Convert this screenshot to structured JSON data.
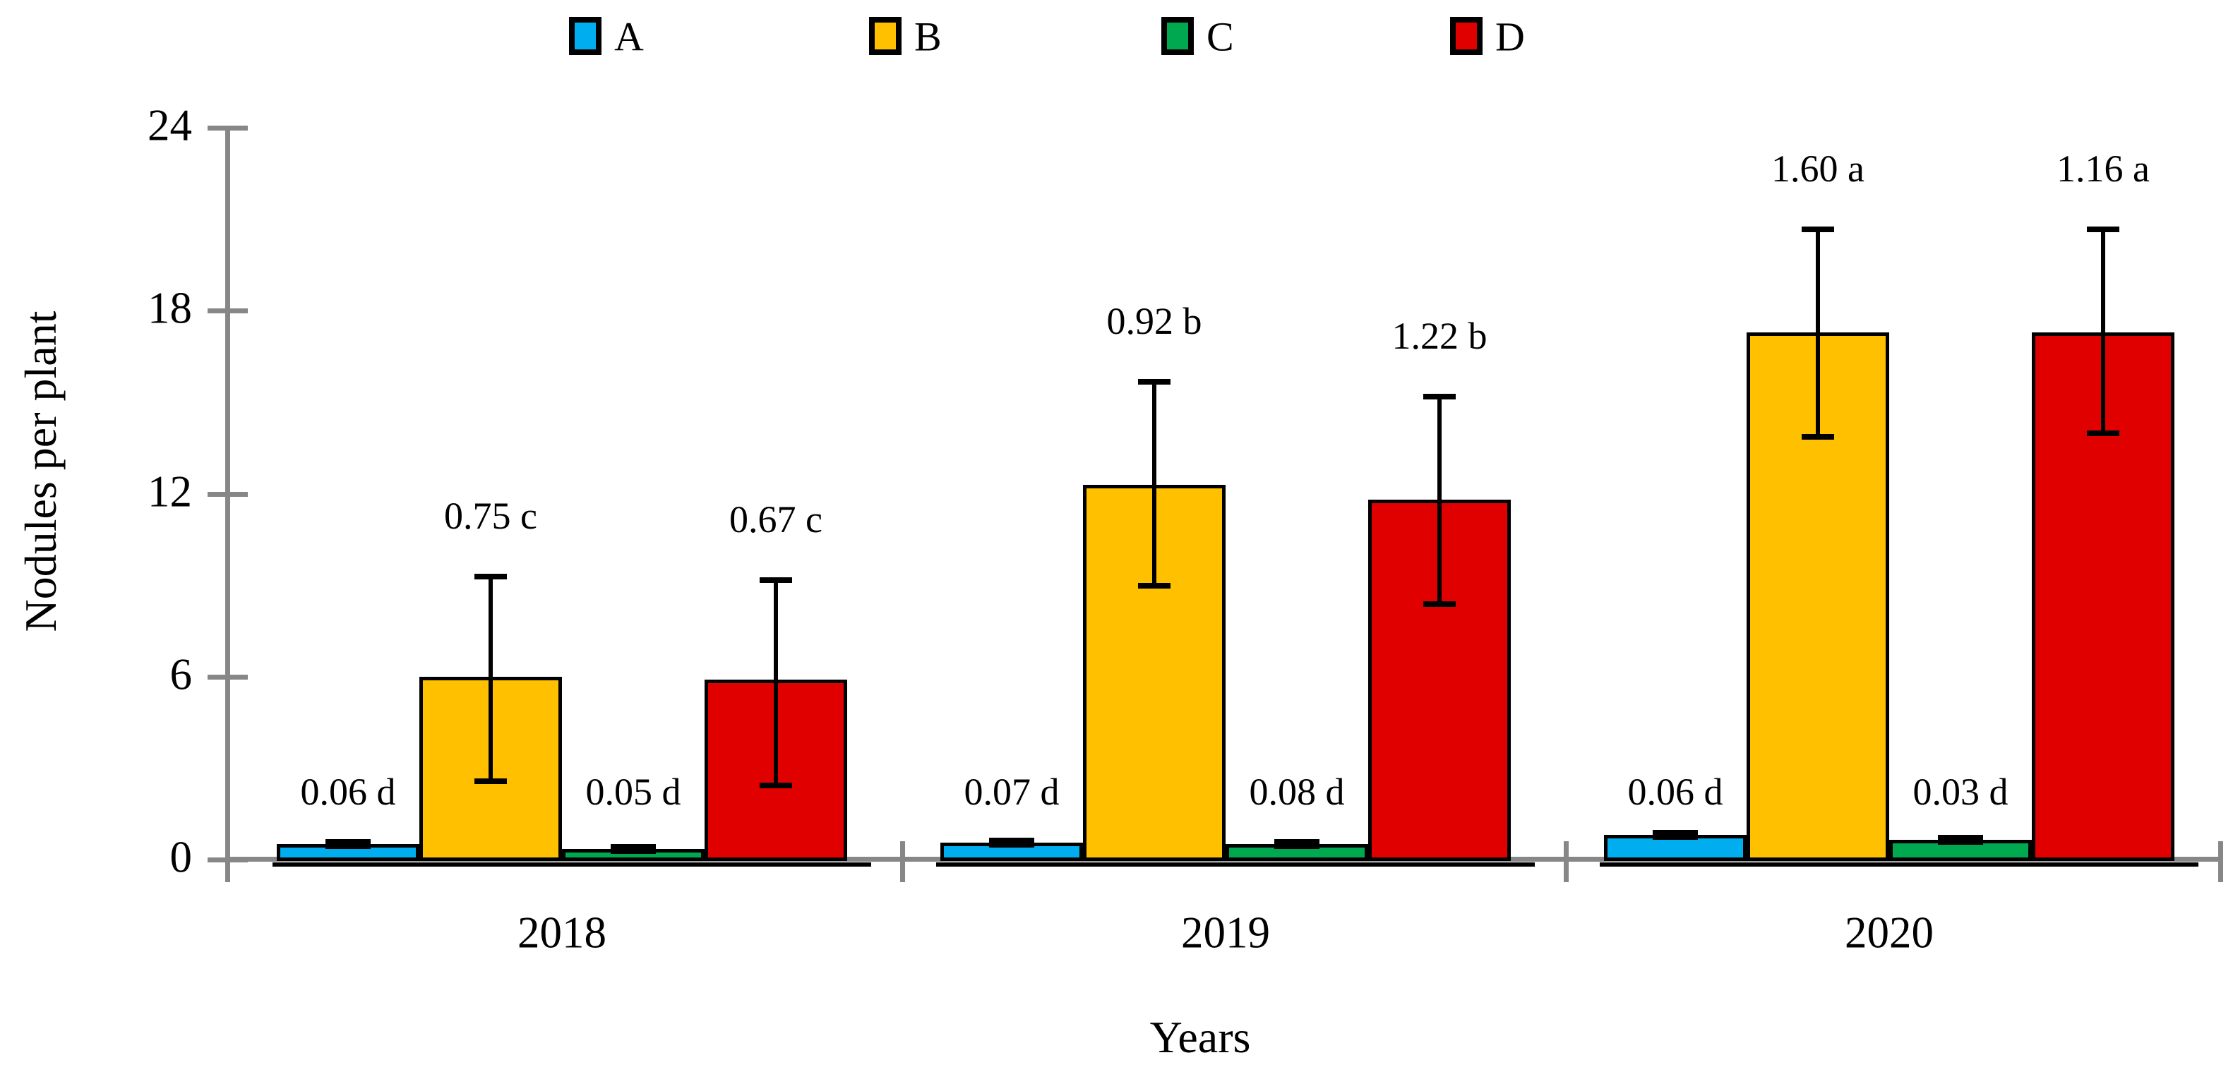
{
  "y_axis": {
    "title": "Nodules per plant",
    "tick_labels": [
      "0",
      "6",
      "12",
      "18",
      "24"
    ]
  },
  "x_axis": {
    "title": "Years",
    "categories": [
      "2018",
      "2019",
      "2020"
    ]
  },
  "legend": {
    "items": [
      {
        "label": "A",
        "color": "#00AEEF"
      },
      {
        "label": "B",
        "color": "#FFC000"
      },
      {
        "label": "C",
        "color": "#00A950"
      },
      {
        "label": "D",
        "color": "#E00000"
      }
    ]
  },
  "chart_data": {
    "type": "bar",
    "title": "",
    "xlabel": "Years",
    "ylabel": "Nodules per plant",
    "categories": [
      "2018",
      "2019",
      "2020"
    ],
    "ylim": [
      0,
      24
    ],
    "yticks": [
      0,
      6,
      12,
      18,
      24
    ],
    "grid": false,
    "legend_position": "top",
    "bar_outline_color": "#000000",
    "axis_color": "#878787",
    "series": [
      {
        "name": "A",
        "color": "#00AEEF",
        "values": [
          0.5,
          0.55,
          0.8
        ],
        "error_low": [
          0.4,
          0.45,
          0.7
        ],
        "error_high": [
          0.6,
          0.65,
          0.9
        ],
        "point_labels": [
          "0.06 d",
          "0.07 d",
          "0.06 d"
        ]
      },
      {
        "name": "B",
        "color": "#FFC000",
        "values": [
          6.0,
          12.3,
          17.3
        ],
        "error_low": [
          2.6,
          9.0,
          13.9
        ],
        "error_high": [
          9.3,
          15.7,
          20.7
        ],
        "point_labels": [
          "0.75 c",
          "0.92 b",
          "1.60 a"
        ]
      },
      {
        "name": "C",
        "color": "#00A950",
        "values": [
          0.35,
          0.5,
          0.65
        ],
        "error_low": [
          0.25,
          0.4,
          0.55
        ],
        "error_high": [
          0.45,
          0.6,
          0.75
        ],
        "point_labels": [
          "0.05 d",
          "0.08 d",
          "0.03 d"
        ]
      },
      {
        "name": "D",
        "color": "#E00000",
        "values": [
          5.9,
          11.8,
          17.3
        ],
        "error_low": [
          2.45,
          8.4,
          14.0
        ],
        "error_high": [
          9.2,
          15.2,
          20.7
        ],
        "point_labels": [
          "0.67 c",
          "1.22 b",
          "1.16 a"
        ]
      }
    ]
  }
}
